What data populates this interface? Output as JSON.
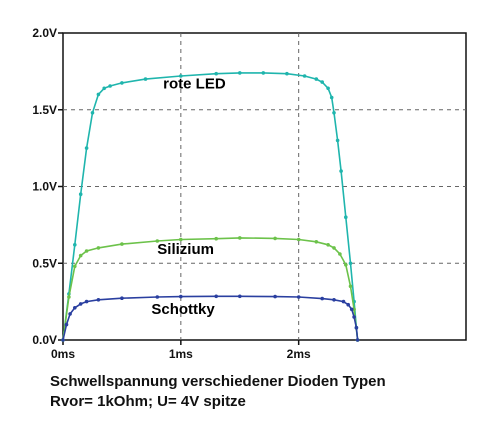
{
  "chart_data": {
    "type": "line",
    "xlabel": "",
    "ylabel": "",
    "x_unit": "ms",
    "y_unit": "V",
    "xlim": [
      0,
      3.42
    ],
    "ylim": [
      0,
      2.0
    ],
    "x_ticks": [
      {
        "value": 0,
        "label": "0ms"
      },
      {
        "value": 1,
        "label": "1ms"
      },
      {
        "value": 2,
        "label": "2ms"
      }
    ],
    "y_ticks": [
      {
        "value": 0,
        "label": "0.0V"
      },
      {
        "value": 0.5,
        "label": "0.5V"
      },
      {
        "value": 1.0,
        "label": "1.0V"
      },
      {
        "value": 1.5,
        "label": "1.5V"
      },
      {
        "value": 2.0,
        "label": "2.0V"
      }
    ],
    "grid": true,
    "grid_style": "dashed",
    "series": [
      {
        "name": "rote LED",
        "color": "#1fb5ad",
        "label_at": {
          "x": 0.85,
          "y": 1.64
        },
        "points": [
          [
            0,
            0
          ],
          [
            0.05,
            0.3
          ],
          [
            0.1,
            0.62
          ],
          [
            0.15,
            0.95
          ],
          [
            0.2,
            1.25
          ],
          [
            0.25,
            1.48
          ],
          [
            0.3,
            1.6
          ],
          [
            0.35,
            1.64
          ],
          [
            0.4,
            1.655
          ],
          [
            0.5,
            1.675
          ],
          [
            0.7,
            1.7
          ],
          [
            1.0,
            1.72
          ],
          [
            1.3,
            1.735
          ],
          [
            1.5,
            1.74
          ],
          [
            1.7,
            1.74
          ],
          [
            1.9,
            1.735
          ],
          [
            2.05,
            1.72
          ],
          [
            2.15,
            1.7
          ],
          [
            2.2,
            1.68
          ],
          [
            2.25,
            1.64
          ],
          [
            2.28,
            1.58
          ],
          [
            2.3,
            1.48
          ],
          [
            2.33,
            1.3
          ],
          [
            2.36,
            1.1
          ],
          [
            2.4,
            0.8
          ],
          [
            2.44,
            0.5
          ],
          [
            2.47,
            0.25
          ],
          [
            2.49,
            0.08
          ],
          [
            2.5,
            0
          ]
        ]
      },
      {
        "name": "Silizium",
        "color": "#6cc24a",
        "label_at": {
          "x": 0.8,
          "y": 0.56
        },
        "points": [
          [
            0,
            0
          ],
          [
            0.05,
            0.28
          ],
          [
            0.1,
            0.48
          ],
          [
            0.15,
            0.55
          ],
          [
            0.2,
            0.58
          ],
          [
            0.3,
            0.6
          ],
          [
            0.5,
            0.625
          ],
          [
            0.8,
            0.645
          ],
          [
            1.0,
            0.655
          ],
          [
            1.3,
            0.66
          ],
          [
            1.5,
            0.665
          ],
          [
            1.8,
            0.662
          ],
          [
            2.0,
            0.655
          ],
          [
            2.15,
            0.64
          ],
          [
            2.25,
            0.62
          ],
          [
            2.3,
            0.6
          ],
          [
            2.35,
            0.56
          ],
          [
            2.4,
            0.49
          ],
          [
            2.44,
            0.35
          ],
          [
            2.47,
            0.2
          ],
          [
            2.5,
            0
          ]
        ]
      },
      {
        "name": "Schottky",
        "color": "#2a3fa0",
        "label_at": {
          "x": 0.75,
          "y": 0.17
        },
        "points": [
          [
            0,
            0
          ],
          [
            0.03,
            0.1
          ],
          [
            0.06,
            0.17
          ],
          [
            0.1,
            0.21
          ],
          [
            0.15,
            0.235
          ],
          [
            0.2,
            0.25
          ],
          [
            0.3,
            0.262
          ],
          [
            0.5,
            0.272
          ],
          [
            0.8,
            0.28
          ],
          [
            1.0,
            0.283
          ],
          [
            1.3,
            0.285
          ],
          [
            1.5,
            0.285
          ],
          [
            1.8,
            0.283
          ],
          [
            2.0,
            0.28
          ],
          [
            2.2,
            0.27
          ],
          [
            2.3,
            0.262
          ],
          [
            2.38,
            0.25
          ],
          [
            2.42,
            0.23
          ],
          [
            2.45,
            0.2
          ],
          [
            2.47,
            0.15
          ],
          [
            2.49,
            0.08
          ],
          [
            2.5,
            0
          ]
        ]
      }
    ]
  },
  "caption": {
    "line1": "Schwellspannung verschiedener Dioden Typen",
    "line2": "Rvor= 1kOhm; U= 4V spitze"
  }
}
